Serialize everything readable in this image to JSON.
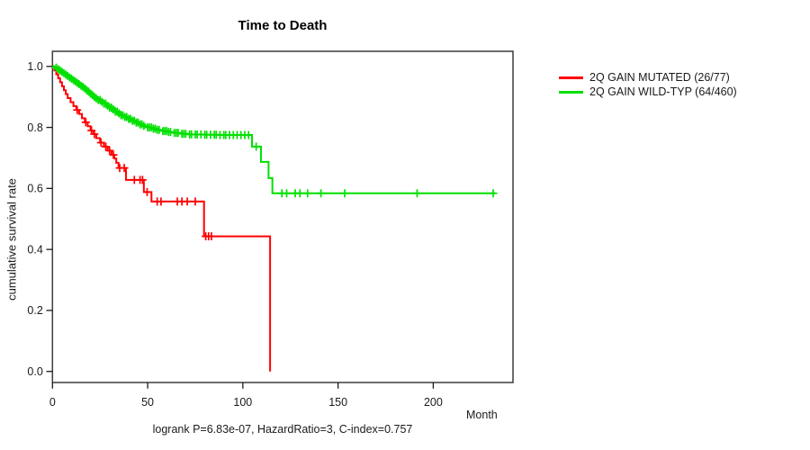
{
  "title": "Time to Death",
  "chart_data": {
    "type": "line",
    "subtype": "kaplan-meier-step-curves",
    "title": "Time to Death",
    "xlabel": "Month",
    "ylabel": "cumulative survival rate",
    "xlim": [
      0,
      242
    ],
    "ylim": [
      0.0,
      1.0
    ],
    "x_ticks": [
      0,
      50,
      100,
      150,
      200
    ],
    "y_ticks": [
      0.0,
      0.2,
      0.4,
      0.6,
      0.8,
      1.0
    ],
    "grid": false,
    "legend_position": "right-outside",
    "annotation": "logrank P=6.83e-07, HazardRatio=3, C-index=0.757",
    "series": [
      {
        "name": "2Q GAIN MUTATED (26/77)",
        "color": "#ff0000",
        "end_month": null,
        "steps": [
          [
            0,
            1.0
          ],
          [
            1,
            0.987
          ],
          [
            2,
            0.974
          ],
          [
            3,
            0.961
          ],
          [
            4,
            0.948
          ],
          [
            5,
            0.935
          ],
          [
            6,
            0.922
          ],
          [
            7,
            0.909
          ],
          [
            8,
            0.896
          ],
          [
            9.5,
            0.883
          ],
          [
            11,
            0.87
          ],
          [
            12.5,
            0.857
          ],
          [
            14,
            0.844
          ],
          [
            15.5,
            0.83
          ],
          [
            17,
            0.817
          ],
          [
            18.5,
            0.804
          ],
          [
            20,
            0.79
          ],
          [
            21.5,
            0.778
          ],
          [
            23,
            0.765
          ],
          [
            25,
            0.75
          ],
          [
            27,
            0.737
          ],
          [
            29,
            0.724
          ],
          [
            31,
            0.71
          ],
          [
            32.5,
            0.698
          ],
          [
            33.5,
            0.684
          ],
          [
            34.7,
            0.667
          ],
          [
            38.6,
            0.628
          ],
          [
            48,
            0.588
          ],
          [
            52,
            0.557
          ],
          [
            79.6,
            0.443
          ],
          [
            114.3,
            0.0
          ]
        ],
        "censor_months": [
          13,
          17.5,
          20.5,
          22,
          25.5,
          28,
          30,
          32,
          35.3,
          37.7,
          43,
          46,
          47.3,
          49.7,
          55,
          57,
          65.6,
          68,
          70.8,
          75,
          80.5,
          82,
          83.5
        ]
      },
      {
        "name": "2Q GAIN WILD-TYP (64/460)",
        "color": "#00e000",
        "end_month": 232.6,
        "steps": [
          [
            0,
            1.0
          ],
          [
            1.5,
            0.996
          ],
          [
            3,
            0.991
          ],
          [
            4,
            0.987
          ],
          [
            5,
            0.982
          ],
          [
            6,
            0.978
          ],
          [
            7,
            0.973
          ],
          [
            8,
            0.969
          ],
          [
            9,
            0.964
          ],
          [
            10,
            0.96
          ],
          [
            11,
            0.955
          ],
          [
            12,
            0.951
          ],
          [
            13,
            0.946
          ],
          [
            14,
            0.942
          ],
          [
            15,
            0.937
          ],
          [
            16,
            0.933
          ],
          [
            17,
            0.928
          ],
          [
            18,
            0.922
          ],
          [
            19,
            0.917
          ],
          [
            20,
            0.911
          ],
          [
            21,
            0.906
          ],
          [
            22,
            0.9
          ],
          [
            23,
            0.895
          ],
          [
            24,
            0.89
          ],
          [
            25.5,
            0.884
          ],
          [
            27,
            0.878
          ],
          [
            28.5,
            0.871
          ],
          [
            30,
            0.865
          ],
          [
            31.5,
            0.859
          ],
          [
            33,
            0.852
          ],
          [
            34.5,
            0.846
          ],
          [
            36,
            0.84
          ],
          [
            38,
            0.834
          ],
          [
            40,
            0.828
          ],
          [
            42,
            0.822
          ],
          [
            44,
            0.816
          ],
          [
            46,
            0.81
          ],
          [
            48,
            0.805
          ],
          [
            50,
            0.8
          ],
          [
            52.5,
            0.796
          ],
          [
            55,
            0.792
          ],
          [
            58,
            0.788
          ],
          [
            61,
            0.785
          ],
          [
            64,
            0.782
          ],
          [
            68,
            0.779
          ],
          [
            72,
            0.777
          ],
          [
            80,
            0.776
          ],
          [
            87,
            0.775
          ],
          [
            104.8,
            0.737
          ],
          [
            109.5,
            0.687
          ],
          [
            113.5,
            0.634
          ],
          [
            115.5,
            0.584
          ]
        ],
        "censor_months": [
          2,
          3,
          4,
          5,
          6,
          7,
          8,
          9,
          10,
          11,
          12,
          13,
          14,
          15,
          16,
          17,
          18,
          19,
          20,
          21,
          22,
          23,
          24,
          25,
          26,
          27,
          28,
          29,
          30,
          31,
          32,
          33,
          34,
          35,
          36,
          37,
          38,
          39,
          40,
          41,
          42,
          43,
          44,
          45,
          46,
          47,
          48,
          50,
          51,
          52,
          53,
          54,
          55,
          56,
          58,
          59,
          60,
          61,
          62,
          64,
          65,
          66,
          68,
          69,
          70,
          72,
          73,
          75,
          76,
          78,
          80,
          81,
          83,
          85,
          86,
          88,
          90,
          91,
          93,
          95,
          97,
          99,
          101,
          103,
          107,
          120.5,
          123,
          127.5,
          130,
          134,
          141,
          153.5,
          191.5,
          231.5
        ]
      }
    ]
  }
}
